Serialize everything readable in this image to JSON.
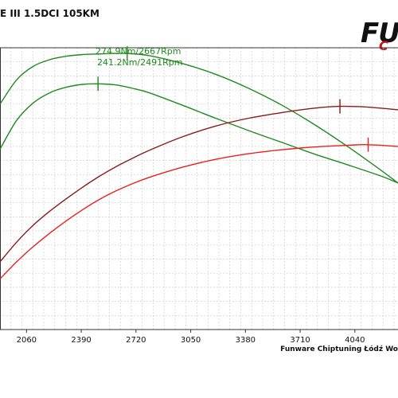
{
  "title": "E III 1.5DCI 105KM",
  "logo": {
    "main": "FU",
    "sub": "C",
    "accent": "#c4141c"
  },
  "footer": "Funware Chiptuning Łódź Wo",
  "chart_data": {
    "type": "line",
    "title": "E III 1.5DCI 105KM",
    "xlabel": "",
    "ylabel": "",
    "xlim": [
      1900,
      4300
    ],
    "ylim": [
      0,
      100
    ],
    "x_ticks": [
      "2060",
      "2390",
      "2720",
      "3050",
      "3380",
      "3710",
      "4040"
    ],
    "x_tick_values": [
      2060,
      2390,
      2720,
      3050,
      3380,
      3710,
      4040
    ],
    "grid": true,
    "series": [
      {
        "color": "#1f8a1f",
        "x": [
          1900,
          2000,
          2100,
          2200,
          2300,
          2400,
          2500,
          2600,
          2667,
          2800,
          3000,
          3200,
          3400,
          3600,
          3800,
          4000,
          4200,
          4300
        ],
        "y": [
          80,
          88.6,
          93.4,
          95.8,
          97.0,
          97.6,
          97.8,
          98.0,
          98.0,
          97.2,
          94.4,
          90.6,
          85.6,
          79.6,
          72.6,
          64.8,
          56.4,
          52
        ]
      },
      {
        "color": "#1f8a1f",
        "x": [
          1900,
          2000,
          2100,
          2200,
          2300,
          2400,
          2491,
          2600,
          2700,
          2800,
          3000,
          3200,
          3400,
          3600,
          3800,
          4000,
          4200,
          4300
        ],
        "y": [
          64,
          74.2,
          80.4,
          84.0,
          86.0,
          87.0,
          87.2,
          86.8,
          85.6,
          84.0,
          79.6,
          75.0,
          70.6,
          66.4,
          62.2,
          58.4,
          54.4,
          52
        ]
      },
      {
        "color": "#8b1a1a",
        "x": [
          1900,
          2000,
          2100,
          2200,
          2300,
          2400,
          2500,
          2600,
          2700,
          2800,
          3000,
          3200,
          3400,
          3600,
          3800,
          3950,
          4100,
          4300
        ],
        "y": [
          24,
          31.0,
          37.0,
          42.0,
          46.4,
          50.6,
          54.4,
          57.8,
          60.8,
          63.6,
          68.4,
          72.2,
          75.0,
          77.0,
          78.6,
          79.2,
          79.0,
          78
        ]
      },
      {
        "color": "#e8211c",
        "x": [
          1900,
          2000,
          2100,
          2200,
          2300,
          2400,
          2500,
          2600,
          2700,
          2800,
          3000,
          3200,
          3400,
          3600,
          3800,
          4000,
          4120,
          4300
        ],
        "y": [
          18,
          24.0,
          29.4,
          34.2,
          38.6,
          42.6,
          46.2,
          49.2,
          51.8,
          54.0,
          57.6,
          60.4,
          62.4,
          63.8,
          64.8,
          65.4,
          65.6,
          65
        ]
      }
    ],
    "markers": [
      {
        "series": 0,
        "x": 2667,
        "y": 98.0
      },
      {
        "series": 1,
        "x": 2491,
        "y": 87.2
      },
      {
        "series": 2,
        "x": 3950,
        "y": 79.2
      },
      {
        "series": 3,
        "x": 4120,
        "y": 65.6
      }
    ],
    "annotations": [
      "274.9Nm/2667Rpm",
      "241.2Nm/2491Rpm"
    ]
  }
}
